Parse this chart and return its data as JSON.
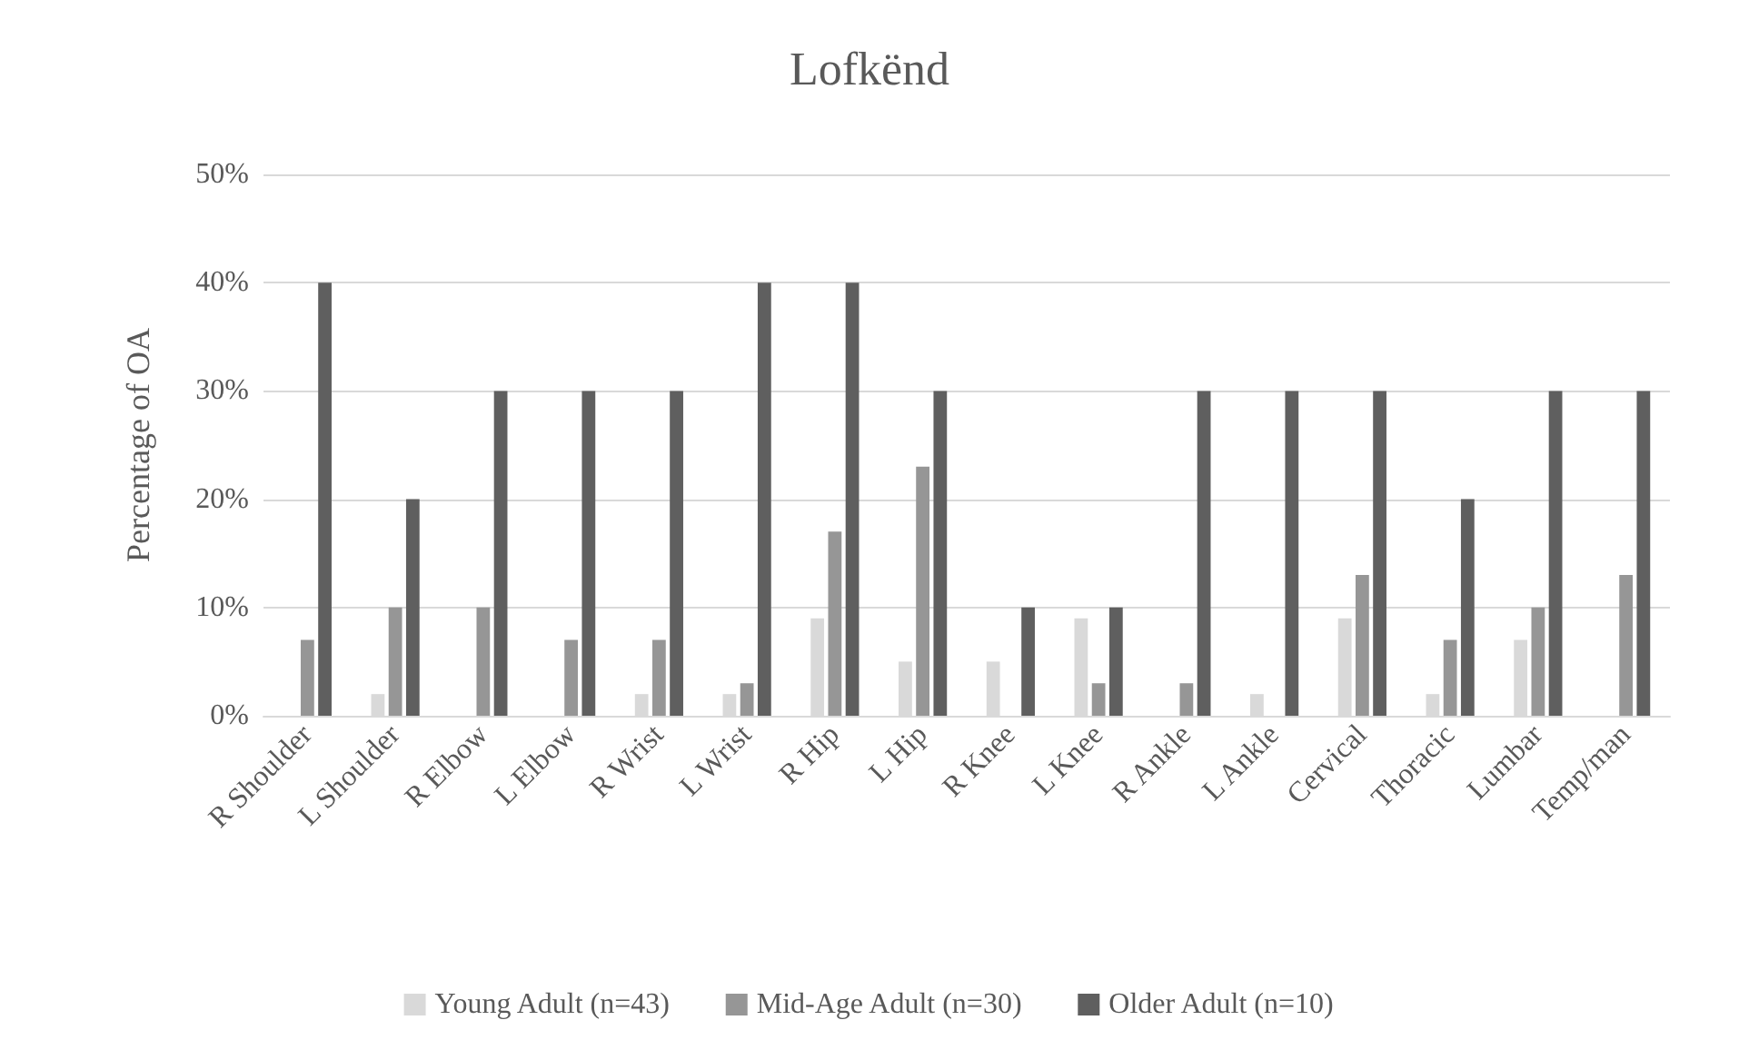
{
  "chart_data": {
    "type": "bar",
    "title": "Lofkënd",
    "ylabel": "Percentage of OA",
    "categories": [
      "R Shoulder",
      "L Shoulder",
      "R Elbow",
      "L Elbow",
      "R Wrist",
      "L Wrist",
      "R Hip",
      "L Hip",
      "R Knee",
      "L Knee",
      "R Ankle",
      "L Ankle",
      "Cervical",
      "Thoracic",
      "Lumbar",
      "Temp/man"
    ],
    "series": [
      {
        "name": "Young Adult (n=43)",
        "color": "#d9d9d9",
        "values": [
          0,
          2,
          0,
          0,
          2,
          2,
          9,
          5,
          5,
          9,
          0,
          2,
          9,
          2,
          7,
          0
        ]
      },
      {
        "name": "Mid-Age Adult (n=30)",
        "color": "#969696",
        "values": [
          7,
          10,
          10,
          7,
          7,
          3,
          17,
          23,
          0,
          3,
          3,
          0,
          13,
          7,
          10,
          13
        ]
      },
      {
        "name": "Older Adult (n=10)",
        "color": "#5f5f5f",
        "values": [
          40,
          20,
          30,
          30,
          30,
          40,
          40,
          30,
          10,
          10,
          30,
          30,
          30,
          20,
          30,
          30
        ]
      }
    ],
    "ylim": [
      0,
      50
    ],
    "yticks": [
      {
        "value": 0,
        "label": "0%"
      },
      {
        "value": 10,
        "label": "10%"
      },
      {
        "value": 20,
        "label": "20%"
      },
      {
        "value": 30,
        "label": "30%"
      },
      {
        "value": 40,
        "label": "40%"
      },
      {
        "value": 50,
        "label": "50%"
      }
    ],
    "grid": "y",
    "legend": "bottom"
  }
}
